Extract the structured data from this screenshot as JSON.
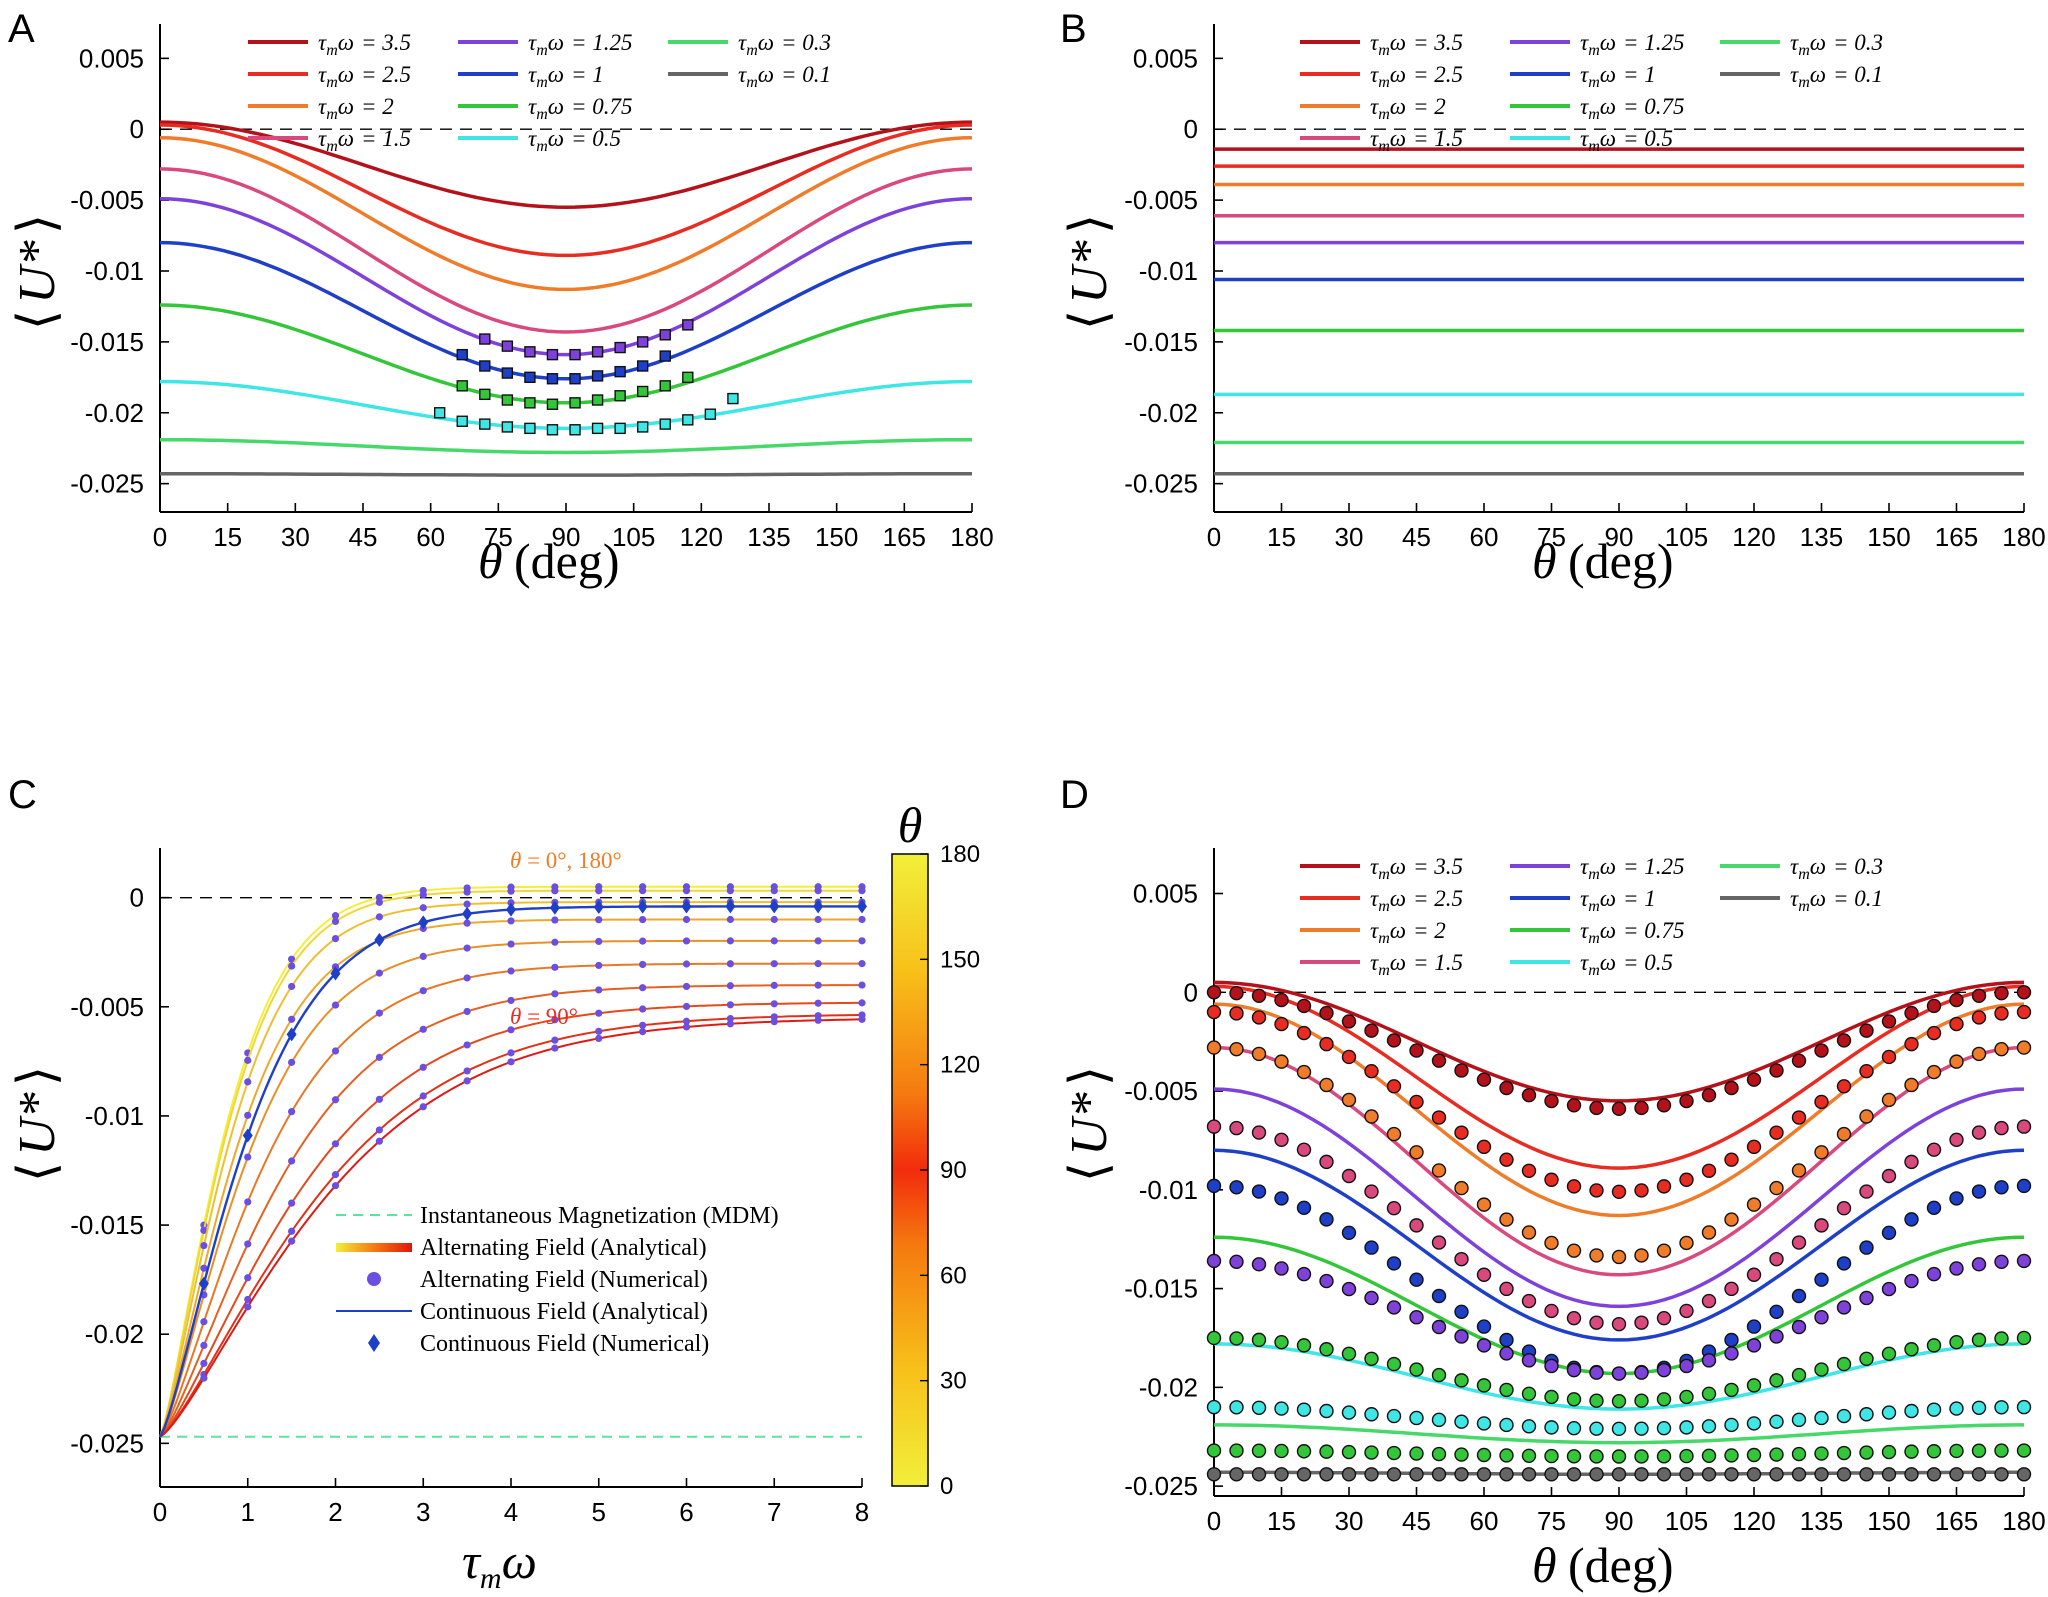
{
  "colors": {
    "3.5": "#b5111a",
    "2.5": "#e82c22",
    "2": "#f07c2a",
    "1.5": "#d9497d",
    "1.25": "#7e42db",
    "1": "#1e3fc7",
    "0.75": "#33c639",
    "0.5": "#3fe6e6",
    "0.3": "#46d96a",
    "0.1": "#666666",
    "ref": "#000000",
    "mdm": "#5de3a0"
  },
  "chart_data": [
    {
      "panel": "A",
      "type": "line",
      "xlabel_text": "(deg)",
      "ylabel_text": "U*",
      "xlim": [
        0,
        180
      ],
      "ylim": [
        -0.027,
        0.007
      ],
      "xticks": [
        "0",
        "15",
        "30",
        "45",
        "60",
        "75",
        "90",
        "105",
        "120",
        "135",
        "150",
        "165",
        "180"
      ],
      "yticks": [
        "0.005",
        "0",
        "-0.005",
        "-0.01",
        "-0.015",
        "-0.02",
        "-0.025"
      ],
      "legend": [
        {
          "key": "3.5",
          "label": "= 3.5"
        },
        {
          "key": "2.5",
          "label": "= 2.5"
        },
        {
          "key": "2",
          "label": "= 2"
        },
        {
          "key": "1.5",
          "label": "= 1.5"
        },
        {
          "key": "1.25",
          "label": "= 1.25"
        },
        {
          "key": "1",
          "label": "= 1"
        },
        {
          "key": "0.75",
          "label": "= 0.75"
        },
        {
          "key": "0.5",
          "label": "= 0.5"
        },
        {
          "key": "0.3",
          "label": "= 0.3"
        },
        {
          "key": "0.1",
          "label": "= 0.1"
        }
      ],
      "series": [
        {
          "key": "3.5",
          "u0": 0.0005,
          "u90": -0.0055
        },
        {
          "key": "2.5",
          "u0": 0.0003,
          "u90": -0.0089
        },
        {
          "key": "2",
          "u0": -0.0006,
          "u90": -0.0113
        },
        {
          "key": "1.5",
          "u0": -0.0028,
          "u90": -0.0143
        },
        {
          "key": "1.25",
          "u0": -0.0049,
          "u90": -0.0159
        },
        {
          "key": "1",
          "u0": -0.008,
          "u90": -0.0176
        },
        {
          "key": "0.75",
          "u0": -0.0124,
          "u90": -0.0193
        },
        {
          "key": "0.5",
          "u0": -0.0178,
          "u90": -0.0211
        },
        {
          "key": "0.3",
          "u0": -0.0219,
          "u90": -0.0228
        },
        {
          "key": "0.1",
          "u0": -0.0243,
          "u90": -0.0244
        }
      ],
      "markers": [
        {
          "key": "1.25",
          "points": [
            [
              72,
              -0.0148
            ],
            [
              77,
              -0.0153
            ],
            [
              82,
              -0.0157
            ],
            [
              87,
              -0.0159
            ],
            [
              92,
              -0.0159
            ],
            [
              97,
              -0.0157
            ],
            [
              102,
              -0.0154
            ],
            [
              107,
              -0.015
            ],
            [
              112,
              -0.0145
            ],
            [
              117,
              -0.0138
            ]
          ]
        },
        {
          "key": "1",
          "points": [
            [
              67,
              -0.0159
            ],
            [
              72,
              -0.0167
            ],
            [
              77,
              -0.0172
            ],
            [
              82,
              -0.0175
            ],
            [
              87,
              -0.0176
            ],
            [
              92,
              -0.0176
            ],
            [
              97,
              -0.0174
            ],
            [
              102,
              -0.0171
            ],
            [
              107,
              -0.0167
            ],
            [
              112,
              -0.016
            ]
          ]
        },
        {
          "key": "0.75",
          "points": [
            [
              67,
              -0.0181
            ],
            [
              72,
              -0.0187
            ],
            [
              77,
              -0.0191
            ],
            [
              82,
              -0.0193
            ],
            [
              87,
              -0.0194
            ],
            [
              92,
              -0.0193
            ],
            [
              97,
              -0.0191
            ],
            [
              102,
              -0.0188
            ],
            [
              107,
              -0.0185
            ],
            [
              112,
              -0.0181
            ],
            [
              117,
              -0.0175
            ]
          ]
        },
        {
          "key": "0.5",
          "points": [
            [
              62,
              -0.02
            ],
            [
              67,
              -0.0206
            ],
            [
              72,
              -0.0208
            ],
            [
              77,
              -0.021
            ],
            [
              82,
              -0.0211
            ],
            [
              87,
              -0.0212
            ],
            [
              92,
              -0.0212
            ],
            [
              97,
              -0.0211
            ],
            [
              102,
              -0.0211
            ],
            [
              107,
              -0.021
            ],
            [
              112,
              -0.0208
            ],
            [
              117,
              -0.0205
            ],
            [
              122,
              -0.0201
            ],
            [
              127,
              -0.019
            ]
          ]
        }
      ]
    },
    {
      "panel": "B",
      "type": "line",
      "xlabel_text": "(deg)",
      "ylabel_text": "U*",
      "xlim": [
        0,
        180
      ],
      "ylim": [
        -0.027,
        0.007
      ],
      "xticks": [
        "0",
        "15",
        "30",
        "45",
        "60",
        "75",
        "90",
        "105",
        "120",
        "135",
        "150",
        "165",
        "180"
      ],
      "yticks": [
        "0.005",
        "0",
        "-0.005",
        "-0.01",
        "-0.015",
        "-0.02",
        "-0.025"
      ],
      "legend": [
        {
          "key": "3.5",
          "label": "= 3.5"
        },
        {
          "key": "2.5",
          "label": "= 2.5"
        },
        {
          "key": "2",
          "label": "= 2"
        },
        {
          "key": "1.5",
          "label": "= 1.5"
        },
        {
          "key": "1.25",
          "label": "= 1.25"
        },
        {
          "key": "1",
          "label": "= 1"
        },
        {
          "key": "0.75",
          "label": "= 0.75"
        },
        {
          "key": "0.5",
          "label": "= 0.5"
        },
        {
          "key": "0.3",
          "label": "= 0.3"
        },
        {
          "key": "0.1",
          "label": "= 0.1"
        }
      ],
      "series": [
        {
          "key": "3.5",
          "value": -0.0014
        },
        {
          "key": "2.5",
          "value": -0.0026
        },
        {
          "key": "2",
          "value": -0.0039
        },
        {
          "key": "1.5",
          "value": -0.0061
        },
        {
          "key": "1.25",
          "value": -0.008
        },
        {
          "key": "1",
          "value": -0.0106
        },
        {
          "key": "0.75",
          "value": -0.0142
        },
        {
          "key": "0.5",
          "value": -0.0187
        },
        {
          "key": "0.3",
          "value": -0.0221
        },
        {
          "key": "0.1",
          "value": -0.0243
        }
      ]
    },
    {
      "panel": "C",
      "type": "line",
      "xlabel_text": "",
      "ylabel_text": "U*",
      "xlim": [
        0,
        8
      ],
      "ylim": [
        -0.027,
        0.002
      ],
      "xticks": [
        "0",
        "1",
        "2",
        "3",
        "4",
        "5",
        "6",
        "7",
        "8"
      ],
      "yticks": [
        "0",
        "-0.005",
        "-0.01",
        "-0.015",
        "-0.02",
        "-0.025"
      ],
      "u_start": -0.0247,
      "theta_curves_deg": [
        0,
        10,
        20,
        30,
        40,
        50,
        60,
        70,
        80,
        90
      ],
      "u_inf_deg0": 0.0005,
      "u_inf_deg90": -0.0055,
      "continuous_u_inf": -0.0,
      "numerical_x": [
        0.5,
        1,
        1.5,
        2,
        2.5,
        3,
        3.5,
        4,
        4.5,
        5,
        5.5,
        6,
        6.5,
        7,
        7.5,
        8
      ],
      "colorbar": {
        "title": "",
        "ticks": [
          "180",
          "150",
          "120",
          "90",
          "60",
          "30",
          "0"
        ],
        "range": [
          0,
          180
        ]
      },
      "annotations": {
        "top": "= 0°, 180°",
        "mid": "= 90°"
      },
      "legend": [
        {
          "kind": "dashed",
          "label": "Instantaneous Magnetization (MDM)"
        },
        {
          "kind": "gradient",
          "label": "Alternating Field (Analytical)"
        },
        {
          "kind": "dot",
          "label": "Alternating Field (Numerical)"
        },
        {
          "kind": "line",
          "label": "Continuous Field (Analytical)"
        },
        {
          "kind": "diamond",
          "label": "Continuous Field (Numerical)"
        }
      ]
    },
    {
      "panel": "D",
      "type": "scatter",
      "xlabel_text": "(deg)",
      "ylabel_text": "U*",
      "xlim": [
        0,
        180
      ],
      "ylim": [
        -0.0255,
        0.007
      ],
      "xticks": [
        "0",
        "15",
        "30",
        "45",
        "60",
        "75",
        "90",
        "105",
        "120",
        "135",
        "150",
        "165",
        "180"
      ],
      "yticks": [
        "0.005",
        "0",
        "-0.005",
        "-0.01",
        "-0.015",
        "-0.02",
        "-0.025"
      ],
      "legend": [
        {
          "key": "3.5",
          "label": "= 3.5"
        },
        {
          "key": "2.5",
          "label": "= 2.5"
        },
        {
          "key": "2",
          "label": "= 2"
        },
        {
          "key": "1.5",
          "label": "= 1.5"
        },
        {
          "key": "1.25",
          "label": "= 1.25"
        },
        {
          "key": "1",
          "label": "= 1"
        },
        {
          "key": "0.75",
          "label": "= 0.75"
        },
        {
          "key": "0.5",
          "label": "= 0.5"
        },
        {
          "key": "0.3",
          "label": "= 0.3"
        },
        {
          "key": "0.1",
          "label": "= 0.1"
        }
      ],
      "series": [
        {
          "key": "3.5",
          "u0": 0.0005,
          "u90": -0.0055
        },
        {
          "key": "2.5",
          "u0": 0.0003,
          "u90": -0.0089
        },
        {
          "key": "2",
          "u0": -0.0006,
          "u90": -0.0113
        },
        {
          "key": "1.5",
          "u0": -0.0028,
          "u90": -0.0143
        },
        {
          "key": "1.25",
          "u0": -0.0049,
          "u90": -0.0159
        },
        {
          "key": "1",
          "u0": -0.008,
          "u90": -0.0176
        },
        {
          "key": "0.75",
          "u0": -0.0124,
          "u90": -0.0193
        },
        {
          "key": "0.5",
          "u0": -0.0178,
          "u90": -0.0211
        },
        {
          "key": "0.3",
          "u0": -0.0219,
          "u90": -0.0228
        },
        {
          "key": "0.1",
          "u0": -0.0243,
          "u90": -0.0244
        }
      ],
      "dot_series": [
        {
          "key": "3.5",
          "u0": 0.0,
          "u90": -0.0059
        },
        {
          "key": "2.5",
          "u0": -0.001,
          "u90": -0.0101
        },
        {
          "key": "2",
          "u0": -0.0028,
          "u90": -0.0134
        },
        {
          "key": "1.5",
          "u0": -0.0068,
          "u90": -0.0168
        },
        {
          "key": "1",
          "u0": -0.0098,
          "u90": -0.0193
        },
        {
          "key": "1.25",
          "u0": -0.0136,
          "u90": -0.0193
        },
        {
          "key": "0.75",
          "u0": -0.0175,
          "u90": -0.0207
        },
        {
          "key": "0.5",
          "u0": -0.021,
          "u90": -0.0221
        },
        {
          "key": "0.75",
          "u0": -0.0232,
          "u90": -0.0235
        },
        {
          "key": "0.1",
          "u0": -0.0244,
          "u90": -0.0244
        }
      ]
    }
  ]
}
